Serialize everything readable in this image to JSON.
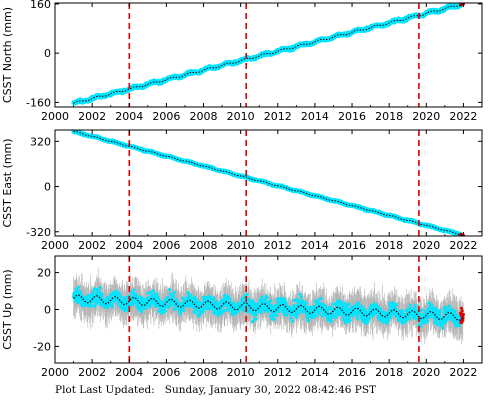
{
  "footer": {
    "label": "Plot Last Updated:",
    "timestamp": "Sunday, January 30, 2022 08:42:46 PST"
  },
  "colors": {
    "data": "#00e5ff",
    "error_bars": "#b4b4b4",
    "model": "#000000",
    "events": "#e00000",
    "recent": "#e00000"
  },
  "chart_data": [
    {
      "type": "scatter",
      "ylabel": "CSST North (mm)",
      "xlim": [
        2000,
        2023
      ],
      "ylim": [
        -175,
        163
      ],
      "yticks": [
        -160,
        0,
        160
      ],
      "xticks": [
        2000,
        2002,
        2004,
        2006,
        2008,
        2010,
        2012,
        2014,
        2016,
        2018,
        2020,
        2022
      ],
      "grid": false,
      "trend": {
        "x": [
          2001.0,
          2022.0
        ],
        "y": [
          -163,
          160
        ]
      },
      "seasonal_amplitude": 3,
      "noise": 4,
      "event_lines": [
        2004.0,
        2010.3,
        2019.6
      ]
    },
    {
      "type": "scatter",
      "ylabel": "CSST East (mm)",
      "xlim": [
        2000,
        2023
      ],
      "ylim": [
        -350,
        400
      ],
      "yticks": [
        -320,
        0,
        320
      ],
      "xticks": [
        2000,
        2002,
        2004,
        2006,
        2008,
        2010,
        2012,
        2014,
        2016,
        2018,
        2020,
        2022
      ],
      "grid": false,
      "trend": {
        "x": [
          2001.0,
          2022.0
        ],
        "y": [
          390,
          -345
        ]
      },
      "seasonal_amplitude": 3,
      "noise": 5,
      "event_lines": [
        2004.0,
        2010.3,
        2019.6
      ]
    },
    {
      "type": "scatter",
      "ylabel": "CSST Up (mm)",
      "xlim": [
        2000,
        2023
      ],
      "ylim": [
        -29,
        29
      ],
      "yticks": [
        -20,
        0,
        20
      ],
      "xticks": [
        2000,
        2002,
        2004,
        2006,
        2008,
        2010,
        2012,
        2014,
        2016,
        2018,
        2020,
        2022
      ],
      "grid": false,
      "trend": {
        "x": [
          2001.0,
          2022.0
        ],
        "y": [
          6,
          -4
        ]
      },
      "seasonal_amplitude": 2,
      "noise": 4,
      "error_bar": 7,
      "event_lines": [
        2004.0,
        2010.3,
        2019.6
      ]
    }
  ]
}
